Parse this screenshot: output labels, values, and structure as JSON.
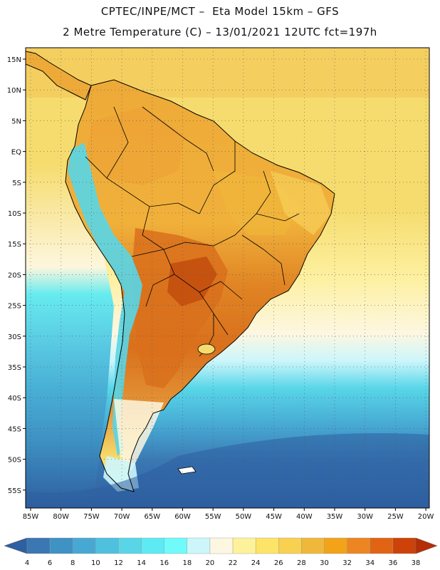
{
  "header": {
    "line1": "CPTEC/INPE/MCT –  Eta Model 15km – GFS",
    "line2": "2 Metre Temperature (C) – 13/01/2021 12UTC fct=197h"
  },
  "map": {
    "lat_labels": [
      "15N",
      "10N",
      "5N",
      "EQ",
      "5S",
      "10S",
      "15S",
      "20S",
      "25S",
      "30S",
      "35S",
      "40S",
      "45S",
      "50S",
      "55S"
    ],
    "lon_labels": [
      "85W",
      "80W",
      "75W",
      "70W",
      "65W",
      "60W",
      "55W",
      "50W",
      "45W",
      "40W",
      "35W",
      "30W",
      "25W",
      "20W"
    ]
  },
  "colorbar": {
    "labels": [
      "4",
      "6",
      "8",
      "10",
      "12",
      "14",
      "16",
      "18",
      "20",
      "22",
      "24",
      "26",
      "28",
      "30",
      "32",
      "34",
      "36",
      "38"
    ],
    "colors": [
      "#2e5fa0",
      "#3a77b3",
      "#3e92c4",
      "#47a9d3",
      "#4fc1df",
      "#58d6e8",
      "#5eeaf2",
      "#70fafa",
      "#cdf6fb",
      "#fdf7e1",
      "#fdf29a",
      "#fde468",
      "#f8d150",
      "#f0b83a",
      "#f2a318",
      "#ec8522",
      "#e06414",
      "#cc4208",
      "#b52e06"
    ]
  },
  "style": {
    "ocean_warm": "#f5d464",
    "ocean_mid": "#fdf7e1",
    "ocean_cool": "#4fc1df",
    "ocean_cold": "#2e5fa0",
    "land_hot": "#d9701c",
    "land_warm": "#eeaa38",
    "andes": "#58d6e8",
    "borders": "#000000"
  }
}
